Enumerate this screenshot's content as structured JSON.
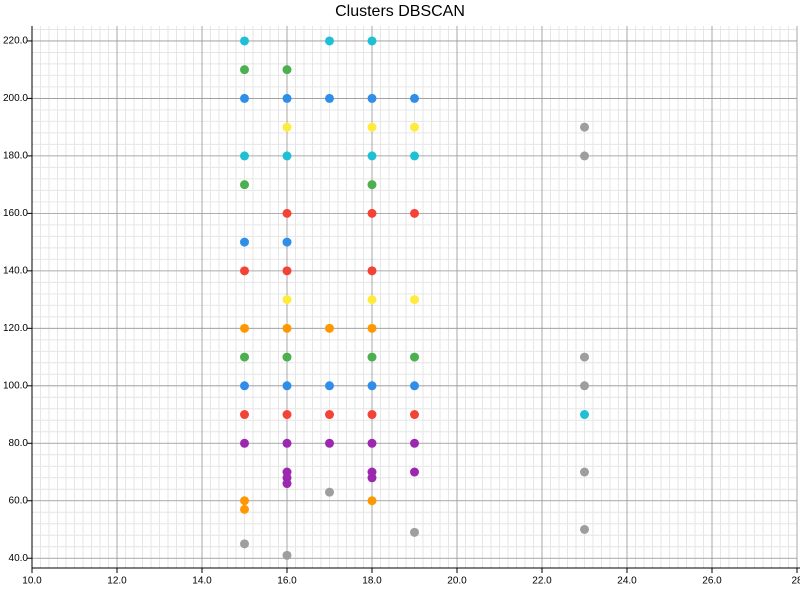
{
  "chart_data": {
    "type": "scatter",
    "title": "Clusters DBSCAN",
    "xlim": [
      10,
      28
    ],
    "ylim": [
      36.6,
      225.2
    ],
    "xticks": [
      {
        "value": 10,
        "label": "10.0"
      },
      {
        "value": 12,
        "label": "12.0"
      },
      {
        "value": 14,
        "label": "14.0"
      },
      {
        "value": 16,
        "label": "16.0"
      },
      {
        "value": 18,
        "label": "18.0"
      },
      {
        "value": 20,
        "label": "20.0"
      },
      {
        "value": 22,
        "label": "22.0"
      },
      {
        "value": 24,
        "label": "24.0"
      },
      {
        "value": 26,
        "label": "26.0"
      },
      28
    ],
    "yticks": [
      {
        "value": 40,
        "label": "40.0"
      },
      {
        "value": 60,
        "label": "60.0"
      },
      {
        "value": 80,
        "label": "80.0"
      },
      {
        "value": 100,
        "label": "100.0"
      },
      {
        "value": 120,
        "label": "120.0"
      },
      {
        "value": 140,
        "label": "140.0"
      },
      {
        "value": 160,
        "label": "160.0"
      },
      {
        "value": 180,
        "label": "180.0"
      },
      {
        "value": 200,
        "label": "200.0"
      },
      {
        "value": 220,
        "label": "220.0"
      }
    ],
    "grid": true,
    "minor_grid": {
      "x": 0.2,
      "y": 4
    },
    "series": [
      {
        "color": "#1ec0d6",
        "x": [
          15,
          17,
          18,
          15,
          16,
          18,
          19,
          23
        ],
        "y": [
          220,
          220,
          220,
          180,
          180,
          180,
          180,
          90
        ]
      },
      {
        "color": "#4caf50",
        "x": [
          15,
          16,
          15,
          18,
          15,
          16,
          18,
          19
        ],
        "y": [
          210,
          210,
          170,
          170,
          110,
          110,
          110,
          110
        ]
      },
      {
        "color": "#2f8fe8",
        "x": [
          15,
          16,
          17,
          18,
          19,
          15,
          16,
          15,
          16,
          17,
          18,
          19
        ],
        "y": [
          200,
          200,
          200,
          200,
          200,
          150,
          150,
          100,
          100,
          100,
          100,
          100
        ]
      },
      {
        "color": "#ffeb3b",
        "x": [
          16,
          18,
          19,
          16,
          18,
          19
        ],
        "y": [
          190,
          190,
          190,
          130,
          130,
          130
        ]
      },
      {
        "color": "#9e9e9e",
        "x": [
          23,
          23,
          23,
          23,
          23,
          23,
          17,
          15,
          16,
          19
        ],
        "y": [
          190,
          180,
          110,
          100,
          70,
          50,
          63,
          45,
          41,
          49
        ]
      },
      {
        "color": "#f44336",
        "x": [
          16,
          18,
          19,
          15,
          16,
          18,
          15,
          16,
          17,
          18,
          19
        ],
        "y": [
          160,
          160,
          160,
          140,
          140,
          140,
          90,
          90,
          90,
          90,
          90
        ]
      },
      {
        "color": "#ff9800",
        "x": [
          15,
          16,
          17,
          18,
          15,
          15,
          18
        ],
        "y": [
          120,
          120,
          120,
          120,
          60,
          57,
          60
        ]
      },
      {
        "color": "#9c27b0",
        "x": [
          15,
          16,
          17,
          18,
          19,
          16,
          16,
          16,
          18,
          18,
          19
        ],
        "y": [
          80,
          80,
          80,
          80,
          80,
          70,
          68,
          66,
          70,
          68,
          70
        ]
      }
    ]
  }
}
